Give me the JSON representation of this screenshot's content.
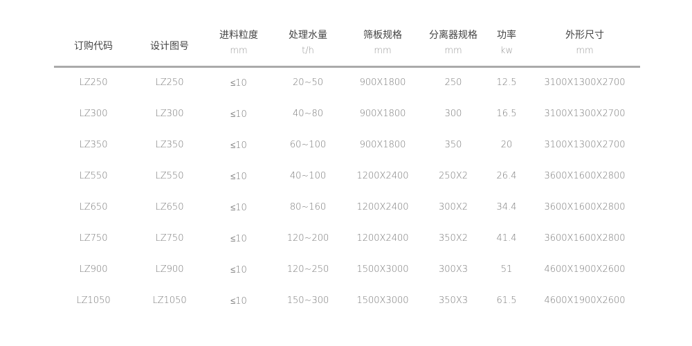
{
  "headers": [
    {
      "title": "订购代码",
      "unit": ""
    },
    {
      "title": "设计图号",
      "unit": ""
    },
    {
      "title": "进料粒度",
      "unit": "mm"
    },
    {
      "title": "处理水量",
      "unit": "t/h"
    },
    {
      "title": "筛板规格",
      "unit": "mm"
    },
    {
      "title": "分离器规格",
      "unit": "mm"
    },
    {
      "title": "功率",
      "unit": "kw"
    },
    {
      "title": "外形尺寸",
      "unit": "mm"
    }
  ],
  "rows": [
    [
      "LZ250",
      "LZ250",
      "≤10",
      "20~50",
      "900X1800",
      "250",
      "12.5",
      "3100X1300X2700"
    ],
    [
      "LZ300",
      "LZ300",
      "≤10",
      "40~80",
      "900X1800",
      "300",
      "16.5",
      "3100X1300X2700"
    ],
    [
      "LZ350",
      "LZ350",
      "≤10",
      "60~100",
      "900X1800",
      "350",
      "20",
      "3100X1300X2700"
    ],
    [
      "LZ550",
      "LZ550",
      "≤10",
      "40~100",
      "1200X2400",
      "250X2",
      "26.4",
      "3600X1600X2800"
    ],
    [
      "LZ650",
      "LZ650",
      "≤10",
      "80~160",
      "1200X2400",
      "300X2",
      "34.4",
      "3600X1600X2800"
    ],
    [
      "LZ750",
      "LZ750",
      "≤10",
      "120~200",
      "1200X2400",
      "350X2",
      "41.4",
      "3600X1600X2800"
    ],
    [
      "LZ900",
      "LZ900",
      "≤10",
      "120~250",
      "1500X3000",
      "300X3",
      "51",
      "4600X1900X2600"
    ],
    [
      "LZ1050",
      "LZ1050",
      "≤10",
      "150~300",
      "1500X3000",
      "350X3",
      "61.5",
      "4600X1900X2600"
    ]
  ]
}
